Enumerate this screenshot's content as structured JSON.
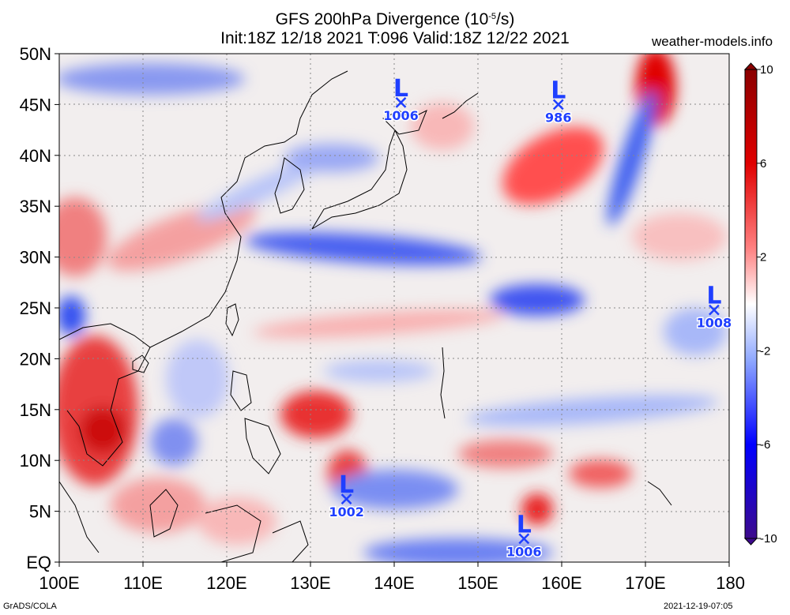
{
  "header": {
    "title_prefix": "GFS 200hPa Divergence (10",
    "title_exp": "-5",
    "title_suffix": "/s)",
    "subtitle": "Init:18Z 12/18 2021 T:096 Valid:18Z 12/22 2021",
    "site": "weather-models.info"
  },
  "map_data": {
    "lon_range": [
      100,
      180
    ],
    "lat_range": [
      0,
      50
    ],
    "lat_labels": [
      "50N",
      "45N",
      "40N",
      "35N",
      "30N",
      "25N",
      "20N",
      "15N",
      "10N",
      "5N",
      "EQ"
    ],
    "lat_values": [
      50,
      45,
      40,
      35,
      30,
      25,
      20,
      15,
      10,
      5,
      0
    ],
    "lon_labels": [
      "100E",
      "110E",
      "120E",
      "130E",
      "140E",
      "150E",
      "160E",
      "170E",
      "180"
    ],
    "lon_values": [
      100,
      110,
      120,
      130,
      140,
      150,
      160,
      170,
      180
    ],
    "lows": [
      {
        "lon": 140.8,
        "lat": 45.2,
        "letter": "L",
        "value": "1006"
      },
      {
        "lon": 159.6,
        "lat": 45.0,
        "letter": "L",
        "value": "986"
      },
      {
        "lon": 178.2,
        "lat": 24.8,
        "letter": "L",
        "value": "1008"
      },
      {
        "lon": 134.3,
        "lat": 6.2,
        "letter": "L",
        "value": "1002"
      },
      {
        "lon": 155.5,
        "lat": 2.3,
        "letter": "L",
        "value": "1006"
      }
    ],
    "colorbar": {
      "labels": [
        "10",
        "6",
        "2",
        "-2",
        "-6",
        "-10"
      ],
      "values": [
        10,
        6,
        2,
        -2,
        -6,
        -10
      ],
      "min": -10,
      "max": 10,
      "colors": [
        "#3d0a8c",
        "#0000ff",
        "#8fa8ff",
        "#ffffff",
        "#ff9999",
        "#ff0000",
        "#8b0000"
      ]
    }
  },
  "footer": {
    "left": "GrADS/COLA",
    "right": "2021-12-19-07:05"
  }
}
